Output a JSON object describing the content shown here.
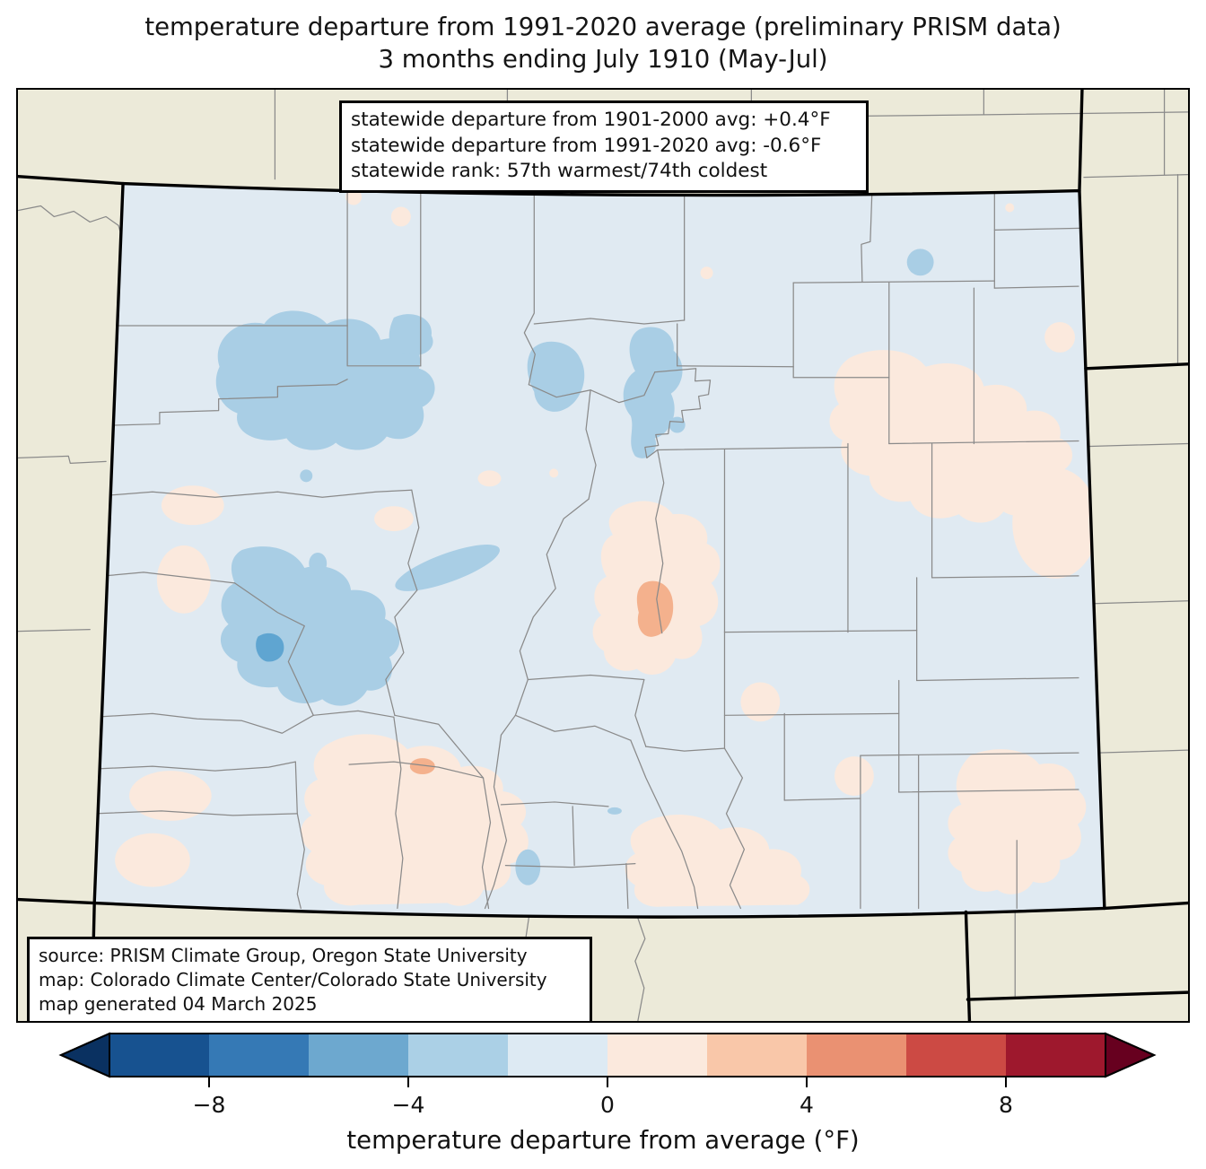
{
  "title": {
    "line1": "temperature departure from 1991-2020 average (preliminary PRISM data)",
    "line2": "3 months ending July 1910 (May-Jul)"
  },
  "stats_box": {
    "lines": [
      "statewide departure from 1901-2000 avg: +0.4°F",
      "statewide departure from 1991-2020 avg: -0.6°F",
      "statewide rank: 57th warmest/74th coldest"
    ]
  },
  "source_box": {
    "lines": [
      "source: PRISM Climate Group, Oregon State University",
      "map: Colorado Climate Center/Colorado State University",
      "map generated 04 March 2025"
    ]
  },
  "map": {
    "region_label": "Colorado temperature departure map",
    "background_color": "#ecead9",
    "state_base_color": "#e0eaf2",
    "county_line_color": "#8a8a8a",
    "state_line_color": "#000000",
    "patch_colors": {
      "cool_light": "#a9cee5",
      "cool_medium": "#5fa5d1",
      "warm_light": "#fbe9dd",
      "warm_medium": "#f4b18d"
    }
  },
  "colorbar": {
    "label": "temperature departure from average (°F)",
    "range_min": -10,
    "range_max": 10,
    "segment_colors": [
      "#175290",
      "#3579b5",
      "#6da8cf",
      "#abd0e6",
      "#ddeaf3",
      "#fbe9dd",
      "#f9c7a9",
      "#ea9172",
      "#cc4a44",
      "#9e182d"
    ],
    "extend_low_color": "#0a3161",
    "extend_high_color": "#67001f",
    "tick_values": [
      -8,
      -4,
      0,
      4,
      8
    ],
    "tick_labels": [
      "−8",
      "−4",
      "0",
      "4",
      "8"
    ]
  }
}
